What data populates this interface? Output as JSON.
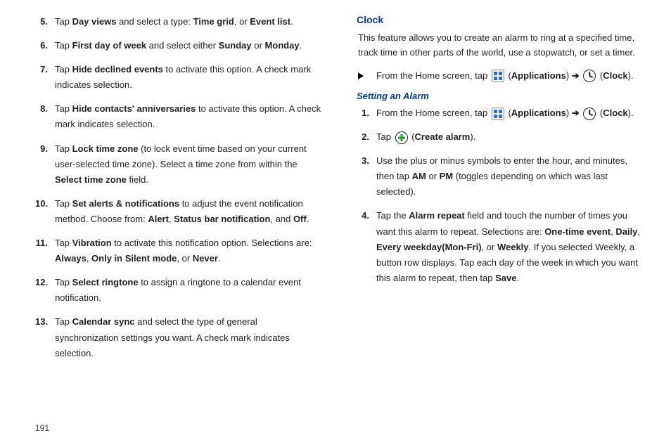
{
  "page_number": "191",
  "left": {
    "items": [
      {
        "n": "5.",
        "parts": [
          "Tap ",
          [
            "b",
            "Day views"
          ],
          " and select a type: ",
          [
            "b",
            "Time grid"
          ],
          ", or ",
          [
            "b",
            "Event list"
          ],
          "."
        ]
      },
      {
        "n": "6.",
        "parts": [
          "Tap ",
          [
            "b",
            "First day of week"
          ],
          " and select either ",
          [
            "b",
            "Sunday"
          ],
          " or ",
          [
            "b",
            "Monday"
          ],
          "."
        ]
      },
      {
        "n": "7.",
        "parts": [
          "Tap ",
          [
            "b",
            "Hide declined events"
          ],
          " to activate this option. A check mark indicates selection."
        ]
      },
      {
        "n": "8.",
        "parts": [
          "Tap ",
          [
            "b",
            "Hide contacts' anniversaries"
          ],
          " to activate this option. A check mark indicates selection."
        ]
      },
      {
        "n": "9.",
        "parts": [
          "Tap ",
          [
            "b",
            "Lock time zone"
          ],
          " (to lock event time based on your current user-selected time zone). Select a time zone from within the ",
          [
            "b",
            "Select time zone"
          ],
          " field."
        ]
      },
      {
        "n": "10.",
        "parts": [
          "Tap ",
          [
            "b",
            "Set alerts & notifications"
          ],
          " to adjust the event notification method. Choose from: ",
          [
            "b",
            "Alert"
          ],
          ", ",
          [
            "b",
            "Status bar notification"
          ],
          ", and ",
          [
            "b",
            "Off"
          ],
          "."
        ]
      },
      {
        "n": "11.",
        "parts": [
          "Tap ",
          [
            "b",
            "Vibration"
          ],
          " to activate this notification option. Selections are: ",
          [
            "b",
            "Always"
          ],
          ", ",
          [
            "b",
            "Only in Silent mode"
          ],
          ", or ",
          [
            "b",
            "Never"
          ],
          "."
        ]
      },
      {
        "n": "12.",
        "parts": [
          "Tap ",
          [
            "b",
            "Select ringtone"
          ],
          " to assign a ringtone to a calendar event notification."
        ]
      },
      {
        "n": "13.",
        "parts": [
          "Tap ",
          [
            "b",
            "Calendar sync"
          ],
          " and select the type of general synchronization settings you want. A check mark indicates selection."
        ]
      }
    ]
  },
  "right": {
    "section_title": "Clock",
    "intro": "This feature allows you to create an alarm to ring at a specified time, track time in other parts of the world, use a stopwatch, or set a timer.",
    "bullet": {
      "parts": [
        "From the Home screen, tap ",
        [
          "icon",
          "apps"
        ],
        " (",
        [
          "b",
          "Applications"
        ],
        ") ",
        [
          "arrow",
          "➔"
        ],
        " ",
        [
          "icon",
          "clock"
        ],
        " (",
        [
          "b",
          "Clock"
        ],
        ")."
      ]
    },
    "subsection_title": "Setting an Alarm",
    "items": [
      {
        "n": "1.",
        "parts": [
          "From the Home screen, tap ",
          [
            "icon",
            "apps"
          ],
          " (",
          [
            "b",
            "Applications"
          ],
          ") ",
          [
            "arrow",
            "➔"
          ],
          " ",
          [
            "icon",
            "clock"
          ],
          " (",
          [
            "b",
            "Clock"
          ],
          ")."
        ]
      },
      {
        "n": "2.",
        "parts": [
          "Tap ",
          [
            "icon",
            "plus"
          ],
          " (",
          [
            "b",
            "Create alarm"
          ],
          ")."
        ]
      },
      {
        "n": "3.",
        "parts": [
          "Use the plus or minus symbols to enter the hour, and minutes, then tap ",
          [
            "b",
            "AM"
          ],
          " or ",
          [
            "b",
            "PM"
          ],
          " (toggles depending on which was last selected)."
        ]
      },
      {
        "n": "4.",
        "parts": [
          "Tap the ",
          [
            "b",
            "Alarm repeat"
          ],
          " field and touch the number of times you want this alarm to repeat. Selections are: ",
          [
            "b",
            "One-time event"
          ],
          ", ",
          [
            "b",
            "Daily"
          ],
          ", ",
          [
            "b",
            "Every weekday(Mon-Fri)"
          ],
          ", or ",
          [
            "b",
            "Weekly"
          ],
          ". If you selected Weekly, a button row displays. Tap each day of the week in which you want this alarm to repeat, then tap ",
          [
            "b",
            "Save"
          ],
          "."
        ]
      }
    ]
  }
}
